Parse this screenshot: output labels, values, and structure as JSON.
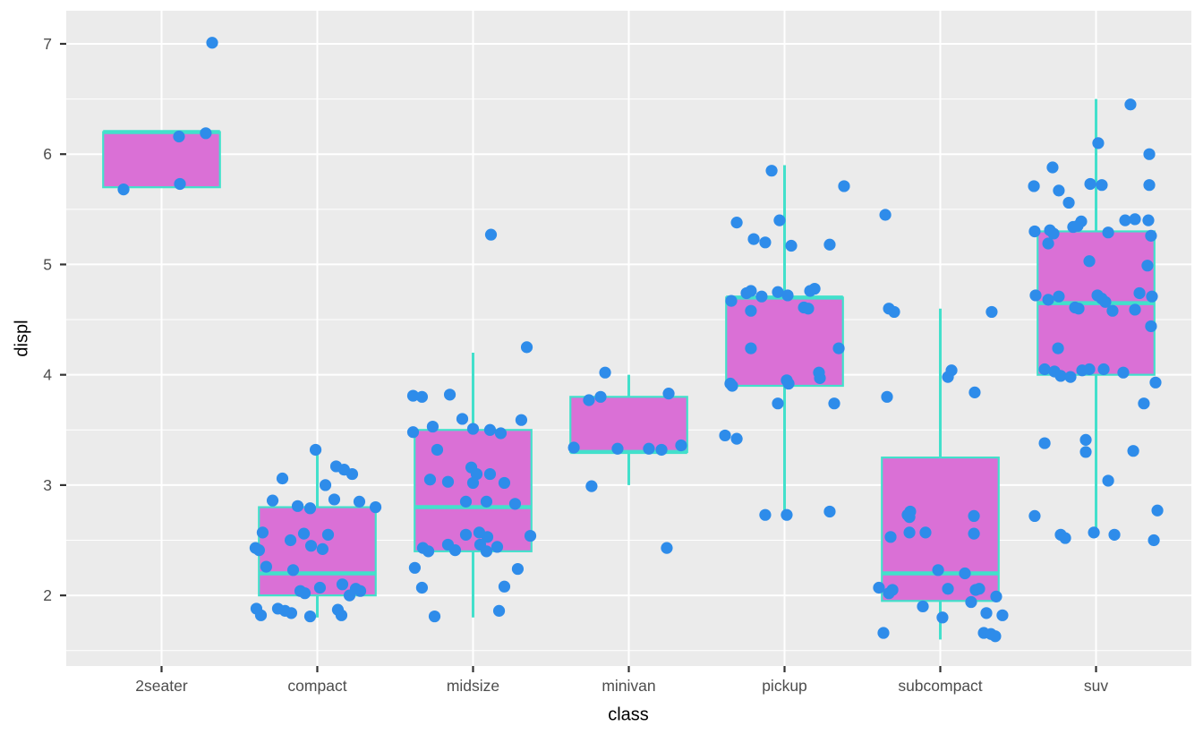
{
  "figure": {
    "xlabel": "class",
    "ylabel": "displ"
  },
  "colors": {
    "panel_bg": "#EBEBEB",
    "grid": "#FFFFFF",
    "box_fill": "#DA70D6",
    "box_stroke": "#42E0CB",
    "point": "#2E8CEA",
    "tick_text": "#4D4D4D",
    "tick_mark": "#333333",
    "axis_title": "#000000"
  },
  "chart_data": {
    "type": "boxplot",
    "subtype": "boxplot-with-jittered-points",
    "title": "",
    "xlabel": "class",
    "ylabel": "displ",
    "legend": "none",
    "grid": "on",
    "categories": [
      "2seater",
      "compact",
      "midsize",
      "minivan",
      "pickup",
      "subcompact",
      "suv"
    ],
    "y_ticks": [
      2,
      3,
      4,
      5,
      6,
      7
    ],
    "y_minor_ticks": [
      1.5,
      2.5,
      3.5,
      4.5,
      5.5,
      6.5
    ],
    "x_domain": [
      0.388,
      7.612
    ],
    "y_domain": [
      1.36,
      7.3
    ],
    "box_width": 0.75,
    "boxes": [
      {
        "category": "2seater",
        "q1": 5.7,
        "median": 6.2,
        "q3": 6.2,
        "whisker_low": 5.7,
        "whisker_high": 6.2
      },
      {
        "category": "compact",
        "q1": 2.0,
        "median": 2.2,
        "q3": 2.8,
        "whisker_low": 1.8,
        "whisker_high": 3.3
      },
      {
        "category": "midsize",
        "q1": 2.4,
        "median": 2.8,
        "q3": 3.5,
        "whisker_low": 1.8,
        "whisker_high": 4.2
      },
      {
        "category": "minivan",
        "q1": 3.3,
        "median": 3.3,
        "q3": 3.8,
        "whisker_low": 3.0,
        "whisker_high": 4.0
      },
      {
        "category": "pickup",
        "q1": 3.9,
        "median": 4.7,
        "q3": 4.7,
        "whisker_low": 2.7,
        "whisker_high": 5.9
      },
      {
        "category": "subcompact",
        "q1": 1.95,
        "median": 2.2,
        "q3": 3.25,
        "whisker_low": 1.6,
        "whisker_high": 4.6
      },
      {
        "category": "suv",
        "q1": 4.0,
        "median": 4.65,
        "q3": 5.3,
        "whisker_low": 2.6,
        "whisker_high": 6.5
      }
    ],
    "points": {
      "2seater": [
        [
          -0.244,
          5.68
        ],
        [
          0.118,
          5.73
        ],
        [
          0.112,
          6.16
        ],
        [
          0.284,
          6.19
        ],
        [
          0.325,
          7.01
        ]
      ],
      "compact": [
        [
          -0.011,
          3.32
        ],
        [
          -0.224,
          3.06
        ],
        [
          0.121,
          3.17
        ],
        [
          0.172,
          3.14
        ],
        [
          0.224,
          3.1
        ],
        [
          0.052,
          3.0
        ],
        [
          -0.287,
          2.86
        ],
        [
          0.109,
          2.87
        ],
        [
          -0.126,
          2.81
        ],
        [
          -0.046,
          2.79
        ],
        [
          0.27,
          2.85
        ],
        [
          0.374,
          2.8
        ],
        [
          -0.351,
          2.57
        ],
        [
          -0.397,
          2.43
        ],
        [
          -0.374,
          2.41
        ],
        [
          -0.172,
          2.5
        ],
        [
          -0.086,
          2.56
        ],
        [
          -0.04,
          2.45
        ],
        [
          0.034,
          2.42
        ],
        [
          0.069,
          2.55
        ],
        [
          -0.328,
          2.26
        ],
        [
          -0.155,
          2.23
        ],
        [
          -0.109,
          2.04
        ],
        [
          -0.08,
          2.02
        ],
        [
          0.017,
          2.07
        ],
        [
          0.161,
          2.1
        ],
        [
          0.207,
          2.0
        ],
        [
          0.247,
          2.06
        ],
        [
          0.276,
          2.04
        ],
        [
          -0.391,
          1.88
        ],
        [
          -0.362,
          1.82
        ],
        [
          -0.253,
          1.88
        ],
        [
          -0.207,
          1.86
        ],
        [
          -0.167,
          1.84
        ],
        [
          -0.046,
          1.81
        ],
        [
          0.132,
          1.87
        ],
        [
          0.155,
          1.82
        ]
      ],
      "midsize": [
        [
          0.115,
          5.27
        ],
        [
          0.345,
          4.25
        ],
        [
          -0.385,
          3.81
        ],
        [
          -0.328,
          3.8
        ],
        [
          -0.149,
          3.82
        ],
        [
          -0.069,
          3.6
        ],
        [
          0.31,
          3.59
        ],
        [
          -0.259,
          3.53
        ],
        [
          -0.385,
          3.48
        ],
        [
          0.0,
          3.51
        ],
        [
          0.109,
          3.5
        ],
        [
          0.178,
          3.47
        ],
        [
          -0.23,
          3.32
        ],
        [
          -0.011,
          3.16
        ],
        [
          0.023,
          3.1
        ],
        [
          0.0,
          3.02
        ],
        [
          0.109,
          3.1
        ],
        [
          0.201,
          3.02
        ],
        [
          -0.276,
          3.05
        ],
        [
          -0.161,
          3.03
        ],
        [
          -0.046,
          2.85
        ],
        [
          0.086,
          2.85
        ],
        [
          0.27,
          2.83
        ],
        [
          -0.046,
          2.55
        ],
        [
          0.04,
          2.57
        ],
        [
          0.092,
          2.53
        ],
        [
          0.046,
          2.46
        ],
        [
          0.086,
          2.4
        ],
        [
          -0.161,
          2.46
        ],
        [
          -0.115,
          2.41
        ],
        [
          -0.322,
          2.43
        ],
        [
          -0.287,
          2.4
        ],
        [
          0.155,
          2.44
        ],
        [
          0.368,
          2.54
        ],
        [
          -0.374,
          2.25
        ],
        [
          0.287,
          2.24
        ],
        [
          -0.328,
          2.07
        ],
        [
          0.201,
          2.08
        ],
        [
          -0.247,
          1.81
        ],
        [
          0.167,
          1.86
        ]
      ],
      "minivan": [
        [
          -0.152,
          4.02
        ],
        [
          -0.256,
          3.77
        ],
        [
          -0.181,
          3.8
        ],
        [
          0.256,
          3.83
        ],
        [
          -0.353,
          3.34
        ],
        [
          -0.072,
          3.33
        ],
        [
          0.129,
          3.33
        ],
        [
          0.21,
          3.32
        ],
        [
          0.336,
          3.36
        ],
        [
          -0.239,
          2.99
        ],
        [
          0.244,
          2.43
        ]
      ],
      "pickup": [
        [
          -0.083,
          5.85
        ],
        [
          0.382,
          5.71
        ],
        [
          -0.307,
          5.38
        ],
        [
          -0.032,
          5.4
        ],
        [
          -0.198,
          5.23
        ],
        [
          -0.124,
          5.2
        ],
        [
          0.043,
          5.17
        ],
        [
          0.29,
          5.18
        ],
        [
          -0.342,
          4.67
        ],
        [
          -0.244,
          4.74
        ],
        [
          -0.216,
          4.76
        ],
        [
          -0.147,
          4.71
        ],
        [
          -0.043,
          4.75
        ],
        [
          0.02,
          4.72
        ],
        [
          0.164,
          4.76
        ],
        [
          0.193,
          4.78
        ],
        [
          0.124,
          4.61
        ],
        [
          0.152,
          4.6
        ],
        [
          -0.216,
          4.58
        ],
        [
          -0.216,
          4.24
        ],
        [
          0.348,
          4.24
        ],
        [
          0.221,
          4.02
        ],
        [
          0.014,
          3.95
        ],
        [
          -0.348,
          3.92
        ],
        [
          -0.336,
          3.9
        ],
        [
          0.026,
          3.92
        ],
        [
          0.227,
          3.97
        ],
        [
          -0.043,
          3.74
        ],
        [
          0.319,
          3.74
        ],
        [
          -0.382,
          3.45
        ],
        [
          -0.307,
          3.42
        ],
        [
          -0.124,
          2.73
        ],
        [
          0.014,
          2.73
        ],
        [
          0.29,
          2.76
        ]
      ],
      "subcompact": [
        [
          -0.353,
          5.45
        ],
        [
          -0.33,
          4.6
        ],
        [
          -0.296,
          4.57
        ],
        [
          0.33,
          4.57
        ],
        [
          0.072,
          4.04
        ],
        [
          0.049,
          3.98
        ],
        [
          -0.342,
          3.8
        ],
        [
          0.221,
          3.84
        ],
        [
          -0.193,
          2.76
        ],
        [
          -0.21,
          2.73
        ],
        [
          -0.198,
          2.71
        ],
        [
          0.216,
          2.72
        ],
        [
          -0.319,
          2.53
        ],
        [
          -0.198,
          2.57
        ],
        [
          -0.095,
          2.57
        ],
        [
          0.216,
          2.56
        ],
        [
          -0.014,
          2.23
        ],
        [
          0.158,
          2.2
        ],
        [
          -0.394,
          2.07
        ],
        [
          -0.307,
          2.05
        ],
        [
          -0.33,
          2.02
        ],
        [
          0.049,
          2.06
        ],
        [
          0.227,
          2.05
        ],
        [
          0.25,
          2.06
        ],
        [
          0.359,
          1.99
        ],
        [
          0.198,
          1.94
        ],
        [
          -0.112,
          1.9
        ],
        [
          0.014,
          1.8
        ],
        [
          0.296,
          1.84
        ],
        [
          0.399,
          1.82
        ],
        [
          -0.365,
          1.66
        ],
        [
          0.279,
          1.66
        ],
        [
          0.325,
          1.65
        ],
        [
          0.353,
          1.63
        ]
      ],
      "suv": [
        [
          0.221,
          6.45
        ],
        [
          0.014,
          6.1
        ],
        [
          0.342,
          6.0
        ],
        [
          -0.279,
          5.88
        ],
        [
          -0.399,
          5.71
        ],
        [
          -0.037,
          5.73
        ],
        [
          0.037,
          5.72
        ],
        [
          0.342,
          5.72
        ],
        [
          -0.239,
          5.67
        ],
        [
          -0.175,
          5.56
        ],
        [
          -0.095,
          5.39
        ],
        [
          0.187,
          5.4
        ],
        [
          0.25,
          5.41
        ],
        [
          0.336,
          5.4
        ],
        [
          -0.147,
          5.34
        ],
        [
          -0.118,
          5.35
        ],
        [
          -0.394,
          5.3
        ],
        [
          -0.296,
          5.31
        ],
        [
          -0.273,
          5.28
        ],
        [
          0.078,
          5.29
        ],
        [
          0.353,
          5.26
        ],
        [
          -0.307,
          5.19
        ],
        [
          -0.043,
          5.03
        ],
        [
          0.33,
          4.99
        ],
        [
          -0.388,
          4.72
        ],
        [
          -0.307,
          4.68
        ],
        [
          -0.239,
          4.71
        ],
        [
          0.009,
          4.72
        ],
        [
          0.037,
          4.69
        ],
        [
          0.06,
          4.66
        ],
        [
          0.279,
          4.74
        ],
        [
          0.359,
          4.71
        ],
        [
          -0.135,
          4.61
        ],
        [
          -0.112,
          4.6
        ],
        [
          0.106,
          4.58
        ],
        [
          0.25,
          4.59
        ],
        [
          0.353,
          4.44
        ],
        [
          -0.244,
          4.24
        ],
        [
          -0.33,
          4.05
        ],
        [
          -0.267,
          4.03
        ],
        [
          -0.227,
          3.99
        ],
        [
          -0.164,
          3.98
        ],
        [
          -0.089,
          4.04
        ],
        [
          -0.043,
          4.05
        ],
        [
          0.049,
          4.05
        ],
        [
          0.175,
          4.02
        ],
        [
          0.382,
          3.93
        ],
        [
          0.307,
          3.74
        ],
        [
          -0.33,
          3.38
        ],
        [
          -0.066,
          3.41
        ],
        [
          -0.066,
          3.3
        ],
        [
          0.239,
          3.31
        ],
        [
          0.078,
          3.04
        ],
        [
          -0.394,
          2.72
        ],
        [
          0.394,
          2.77
        ],
        [
          -0.227,
          2.55
        ],
        [
          -0.198,
          2.52
        ],
        [
          -0.014,
          2.57
        ],
        [
          0.118,
          2.55
        ],
        [
          0.371,
          2.5
        ]
      ]
    }
  }
}
